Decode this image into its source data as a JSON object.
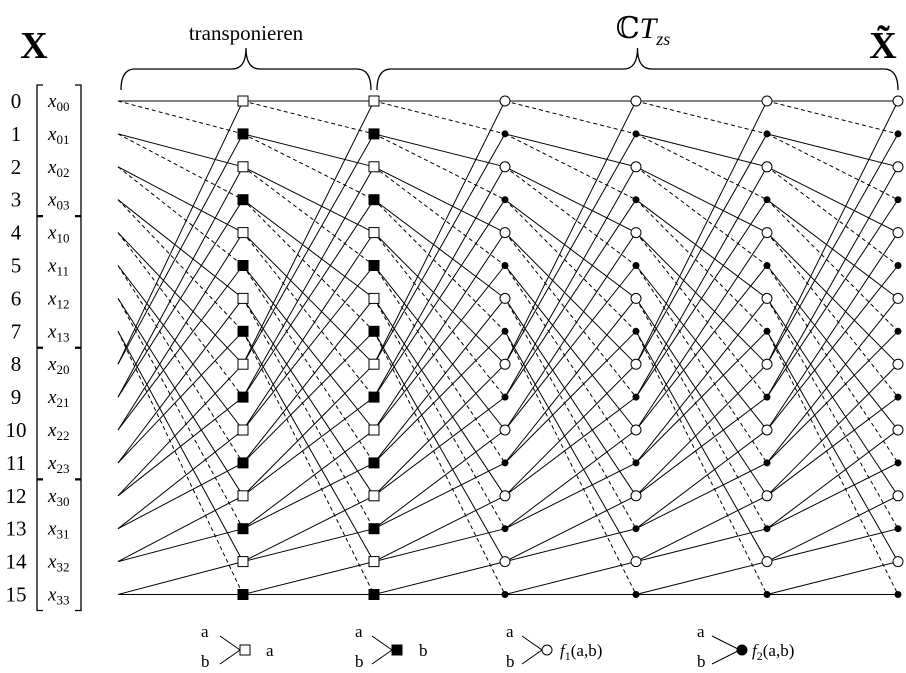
{
  "input_label": "X",
  "output_label": "X̃",
  "header_left": "transponieren",
  "header_right": {
    "prefix": "ℂ",
    "main": "T",
    "sub": "zs"
  },
  "rows": [
    "0",
    "1",
    "2",
    "3",
    "4",
    "5",
    "6",
    "7",
    "8",
    "9",
    "10",
    "11",
    "12",
    "13",
    "14",
    "15"
  ],
  "matrix_entries": [
    "00",
    "01",
    "02",
    "03",
    "10",
    "11",
    "12",
    "13",
    "20",
    "21",
    "22",
    "23",
    "30",
    "31",
    "32",
    "33"
  ],
  "matrix_letter": "x",
  "legend": {
    "input_a": "a",
    "input_b": "b",
    "item1": {
      "output": "a"
    },
    "item2": {
      "output": "b"
    },
    "item3": {
      "func": "f",
      "sub": "1",
      "args": "(a,b)"
    },
    "item4": {
      "func": "f",
      "sub": "2",
      "args": "(a,b)"
    }
  }
}
